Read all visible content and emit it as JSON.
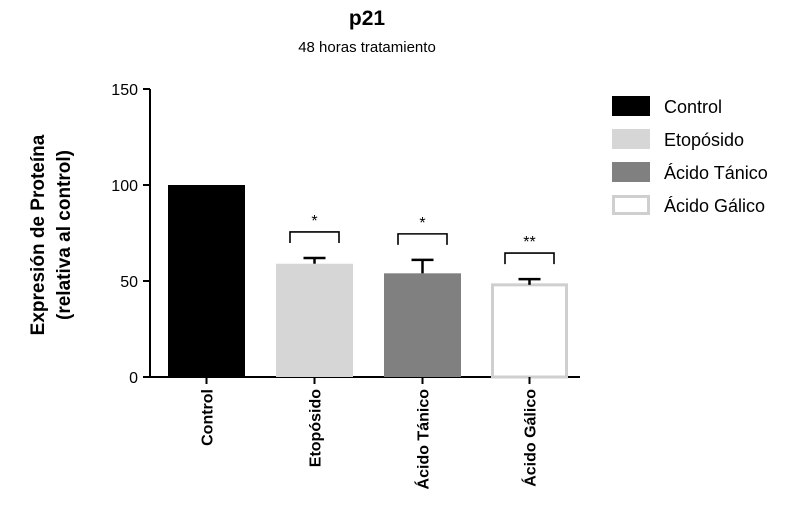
{
  "chart_data": {
    "type": "bar",
    "title": "p21",
    "subtitle": "48 horas tratamiento",
    "ylabel_line1": "Expresión de Proteína",
    "ylabel_line2": "(relativa al control)",
    "xlabel": "",
    "ylim": [
      0,
      150
    ],
    "yticks": [
      0,
      50,
      100,
      150
    ],
    "categories": [
      "Control",
      "Etopósido",
      "Ácido Tánico",
      "Ácido Gálico"
    ],
    "values": [
      100,
      59,
      54,
      48
    ],
    "errors": [
      0,
      3,
      7,
      3
    ],
    "significance": [
      "",
      "*",
      "*",
      "**"
    ],
    "colors": [
      "#000000",
      "#d6d6d6",
      "#808080",
      "#ffffff"
    ],
    "legend": {
      "position": "right",
      "entries": [
        "Control",
        "Etopósido",
        "Ácido Tánico",
        "Ácido Gálico"
      ]
    },
    "grid": false
  }
}
